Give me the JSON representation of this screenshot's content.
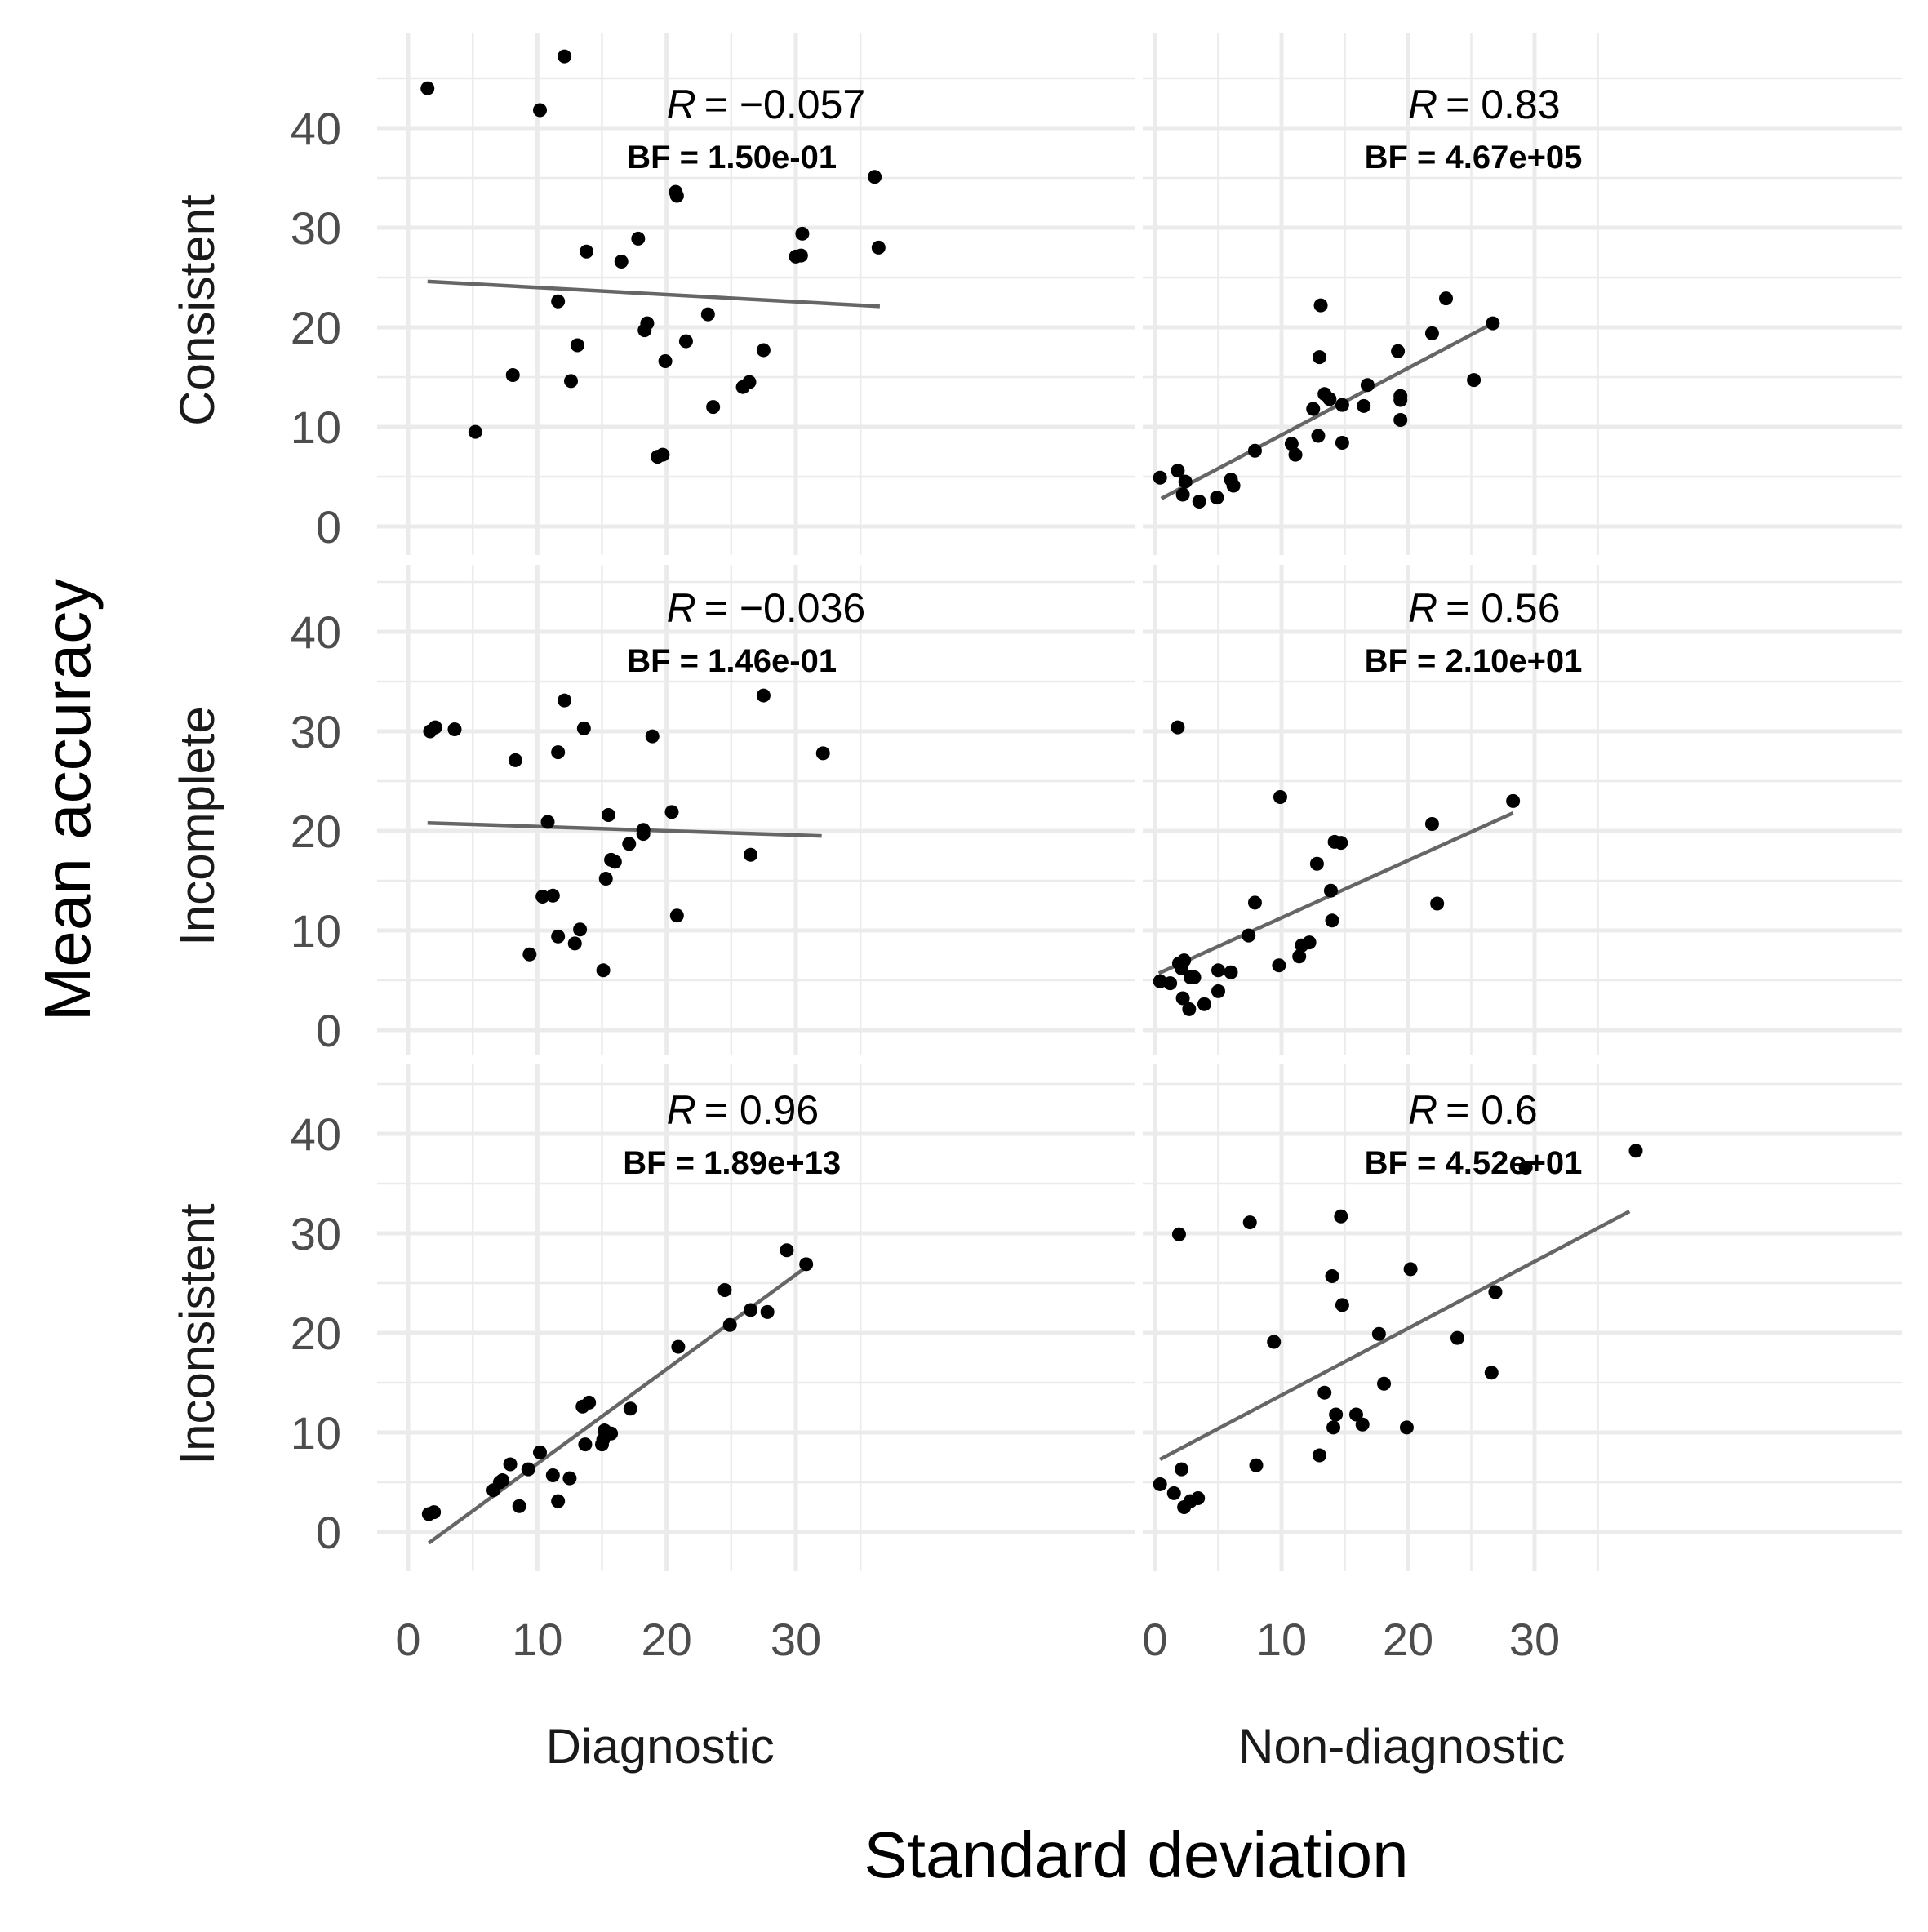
{
  "chart_data": {
    "type": "scatter",
    "xlabel": "Standard deviation",
    "ylabel": "Mean accuracy",
    "columns": [
      "Diagnostic",
      "Non-diagnostic"
    ],
    "rows": [
      "Consistent",
      "Incomplete",
      "Inconsistent"
    ],
    "xlim": [
      -2,
      39
    ],
    "ylim": [
      -3,
      48
    ],
    "x_ticks": [
      "0",
      "10",
      "20",
      "30"
    ],
    "y_ticks": [
      "0",
      "10",
      "20",
      "30",
      "40"
    ],
    "grid": true,
    "panels": [
      {
        "row": "Consistent",
        "column": "Diagnostic",
        "r_label": "= −0.057",
        "bf_label": "BF = 1.50e-01",
        "fit": [
          [
            1.5,
            24.6
          ],
          [
            36.5,
            22.1
          ]
        ],
        "points": [
          [
            1.5,
            44.0
          ],
          [
            5.2,
            9.5
          ],
          [
            8.1,
            15.2
          ],
          [
            10.2,
            41.8
          ],
          [
            11.6,
            22.6
          ],
          [
            12.1,
            47.2
          ],
          [
            12.6,
            14.6
          ],
          [
            13.1,
            18.2
          ],
          [
            13.8,
            27.6
          ],
          [
            16.5,
            26.6
          ],
          [
            17.8,
            28.9
          ],
          [
            18.3,
            19.7
          ],
          [
            18.5,
            20.4
          ],
          [
            19.3,
            7.0
          ],
          [
            19.7,
            7.2
          ],
          [
            19.9,
            16.6
          ],
          [
            20.7,
            33.6
          ],
          [
            20.8,
            33.2
          ],
          [
            21.5,
            18.6
          ],
          [
            23.2,
            21.3
          ],
          [
            23.6,
            12.0
          ],
          [
            25.9,
            14.0
          ],
          [
            26.4,
            14.5
          ],
          [
            27.5,
            17.7
          ],
          [
            30.0,
            27.1
          ],
          [
            30.4,
            27.2
          ],
          [
            30.5,
            29.4
          ],
          [
            36.1,
            35.1
          ],
          [
            36.4,
            28.0
          ]
        ]
      },
      {
        "row": "Consistent",
        "column": "Non-diagnostic",
        "r_label": "= 0.83",
        "bf_label": "BF = 4.67e+05",
        "fit": [
          [
            0.5,
            2.8
          ],
          [
            26.7,
            20.4
          ]
        ],
        "points": [
          [
            0.4,
            4.9
          ],
          [
            1.8,
            5.6
          ],
          [
            2.2,
            3.2
          ],
          [
            2.4,
            4.5
          ],
          [
            3.5,
            2.5
          ],
          [
            4.9,
            2.9
          ],
          [
            6.0,
            4.7
          ],
          [
            6.2,
            4.1
          ],
          [
            7.9,
            7.6
          ],
          [
            10.8,
            8.3
          ],
          [
            11.1,
            7.2
          ],
          [
            12.5,
            11.8
          ],
          [
            12.9,
            9.1
          ],
          [
            13.0,
            17.0
          ],
          [
            13.1,
            22.2
          ],
          [
            13.4,
            13.3
          ],
          [
            13.8,
            12.8
          ],
          [
            14.8,
            8.4
          ],
          [
            14.8,
            12.2
          ],
          [
            16.5,
            12.1
          ],
          [
            16.8,
            14.2
          ],
          [
            19.2,
            17.6
          ],
          [
            19.4,
            10.7
          ],
          [
            19.4,
            12.7
          ],
          [
            19.4,
            13.1
          ],
          [
            21.9,
            19.4
          ],
          [
            23.0,
            22.9
          ],
          [
            25.2,
            14.7
          ],
          [
            26.7,
            20.4
          ]
        ]
      },
      {
        "row": "Incomplete",
        "column": "Diagnostic",
        "r_label": "= −0.036",
        "bf_label": "BF = 1.46e-01",
        "fit": [
          [
            1.5,
            20.8
          ],
          [
            32.0,
            19.5
          ]
        ],
        "points": [
          [
            1.7,
            30.0
          ],
          [
            2.1,
            30.4
          ],
          [
            3.6,
            30.2
          ],
          [
            8.3,
            27.1
          ],
          [
            9.4,
            7.6
          ],
          [
            10.4,
            13.4
          ],
          [
            10.8,
            20.9
          ],
          [
            11.2,
            13.5
          ],
          [
            11.6,
            9.4
          ],
          [
            11.6,
            27.9
          ],
          [
            12.1,
            33.1
          ],
          [
            12.9,
            8.7
          ],
          [
            13.3,
            10.1
          ],
          [
            13.6,
            30.3
          ],
          [
            15.1,
            6.0
          ],
          [
            15.3,
            15.2
          ],
          [
            15.5,
            21.6
          ],
          [
            15.7,
            17.1
          ],
          [
            16.0,
            16.9
          ],
          [
            17.1,
            18.7
          ],
          [
            18.2,
            19.7
          ],
          [
            18.2,
            20.1
          ],
          [
            18.9,
            29.5
          ],
          [
            20.4,
            21.9
          ],
          [
            20.8,
            11.5
          ],
          [
            26.5,
            17.6
          ],
          [
            27.5,
            33.6
          ],
          [
            32.1,
            27.8
          ]
        ]
      },
      {
        "row": "Incomplete",
        "column": "Non-diagnostic",
        "r_label": "= 0.56",
        "bf_label": "BF = 2.10e+01",
        "fit": [
          [
            0.3,
            5.7
          ],
          [
            28.3,
            21.8
          ]
        ],
        "points": [
          [
            0.4,
            4.9
          ],
          [
            1.2,
            4.7
          ],
          [
            1.8,
            30.4
          ],
          [
            1.9,
            6.7
          ],
          [
            2.1,
            6.2
          ],
          [
            2.2,
            3.2
          ],
          [
            2.3,
            7.0
          ],
          [
            2.7,
            2.1
          ],
          [
            2.8,
            5.3
          ],
          [
            3.1,
            5.3
          ],
          [
            3.9,
            2.6
          ],
          [
            5.0,
            6.0
          ],
          [
            5.0,
            3.9
          ],
          [
            6.0,
            5.8
          ],
          [
            7.4,
            9.5
          ],
          [
            7.9,
            12.8
          ],
          [
            9.8,
            6.5
          ],
          [
            9.9,
            23.4
          ],
          [
            11.4,
            7.4
          ],
          [
            11.6,
            8.5
          ],
          [
            12.2,
            8.8
          ],
          [
            12.8,
            16.7
          ],
          [
            13.9,
            14.0
          ],
          [
            14.0,
            11.0
          ],
          [
            14.2,
            18.9
          ],
          [
            14.7,
            18.8
          ],
          [
            21.9,
            20.7
          ],
          [
            22.3,
            12.7
          ],
          [
            28.3,
            23.0
          ]
        ]
      },
      {
        "row": "Inconsistent",
        "column": "Diagnostic",
        "r_label": "= 0.96",
        "bf_label": "BF = 1.89e+13",
        "fit": [
          [
            1.6,
            -1.1
          ],
          [
            30.8,
            26.6
          ]
        ],
        "points": [
          [
            1.6,
            1.8
          ],
          [
            2.0,
            2.0
          ],
          [
            6.6,
            4.2
          ],
          [
            7.1,
            5.0
          ],
          [
            7.3,
            5.2
          ],
          [
            7.9,
            6.8
          ],
          [
            8.6,
            2.6
          ],
          [
            9.3,
            6.3
          ],
          [
            10.2,
            8.0
          ],
          [
            11.2,
            5.7
          ],
          [
            11.6,
            3.1
          ],
          [
            12.5,
            5.4
          ],
          [
            13.5,
            12.6
          ],
          [
            13.7,
            8.8
          ],
          [
            14.0,
            13.0
          ],
          [
            15.0,
            8.8
          ],
          [
            15.1,
            9.3
          ],
          [
            15.2,
            10.2
          ],
          [
            15.7,
            9.9
          ],
          [
            17.2,
            12.4
          ],
          [
            20.9,
            18.6
          ],
          [
            24.5,
            24.3
          ],
          [
            24.9,
            20.8
          ],
          [
            26.5,
            22.3
          ],
          [
            27.8,
            22.1
          ],
          [
            29.3,
            28.3
          ],
          [
            30.8,
            26.9
          ]
        ]
      },
      {
        "row": "Inconsistent",
        "column": "Non-diagnostic",
        "r_label": "= 0.6",
        "bf_label": "BF = 4.52e+01",
        "fit": [
          [
            0.4,
            7.3
          ],
          [
            37.5,
            32.2
          ]
        ],
        "points": [
          [
            0.4,
            4.8
          ],
          [
            1.5,
            3.9
          ],
          [
            1.9,
            29.9
          ],
          [
            2.1,
            6.3
          ],
          [
            2.3,
            2.5
          ],
          [
            2.8,
            3.1
          ],
          [
            3.4,
            3.4
          ],
          [
            7.5,
            31.1
          ],
          [
            8.0,
            6.7
          ],
          [
            9.4,
            19.1
          ],
          [
            13.0,
            7.7
          ],
          [
            13.4,
            14.0
          ],
          [
            14.0,
            25.7
          ],
          [
            14.1,
            10.5
          ],
          [
            14.3,
            11.8
          ],
          [
            14.7,
            31.7
          ],
          [
            14.8,
            22.8
          ],
          [
            15.9,
            11.8
          ],
          [
            16.4,
            10.8
          ],
          [
            17.7,
            19.9
          ],
          [
            18.1,
            14.9
          ],
          [
            19.9,
            10.5
          ],
          [
            20.2,
            26.4
          ],
          [
            23.9,
            19.5
          ],
          [
            26.6,
            16.0
          ],
          [
            26.9,
            24.1
          ],
          [
            29.3,
            36.6
          ],
          [
            38.0,
            38.3
          ]
        ]
      }
    ]
  }
}
